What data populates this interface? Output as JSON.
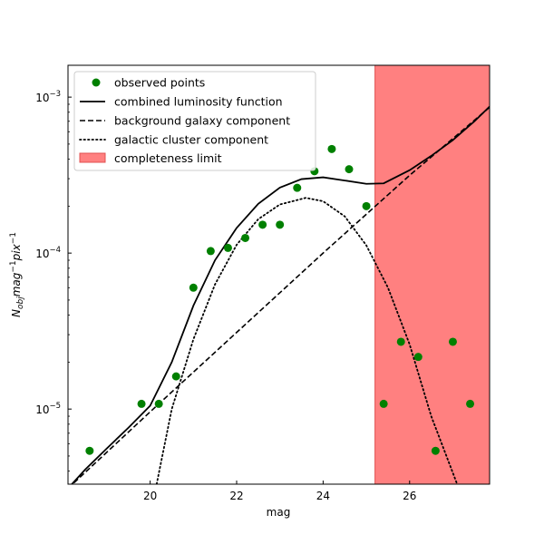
{
  "chart_data": {
    "type": "scatter",
    "xlabel": "mag",
    "ylabel": "N_obj mag^-1 pix^-1",
    "ylabel_parts": {
      "base": "N",
      "sub": "obj",
      "mid1": "mag",
      "sup1": "−1",
      "mid2": "pix",
      "sup2": "−1"
    },
    "xlim": [
      18.1,
      27.85
    ],
    "ylim": [
      3.3e-06,
      0.0016
    ],
    "y_scale": "log",
    "x_ticks": [
      20,
      22,
      24,
      26
    ],
    "x_tick_labels": [
      "20",
      "22",
      "24",
      "26"
    ],
    "y_ticks": [
      1e-05,
      0.0001,
      0.001
    ],
    "y_tick_labels": [
      {
        "base": "10",
        "exp": "−5"
      },
      {
        "base": "10",
        "exp": "−4"
      },
      {
        "base": "10",
        "exp": "−3"
      }
    ],
    "grid": false,
    "legend_position": "top-left",
    "legend": [
      {
        "label": "observed points",
        "style": "marker",
        "color": "#008000"
      },
      {
        "label": "combined luminosity function",
        "style": "solid",
        "color": "#000000"
      },
      {
        "label": "background galaxy component",
        "style": "dashed",
        "color": "#000000"
      },
      {
        "label": "galactic cluster component",
        "style": "dotted",
        "color": "#000000"
      },
      {
        "label": "completeness limit",
        "style": "patch",
        "color": "#ff8080"
      }
    ],
    "completeness_limit": {
      "x_from": 25.2,
      "x_to": 27.85,
      "color": "#ff8080"
    },
    "series": [
      {
        "name": "observed points",
        "kind": "scatter",
        "color": "#008000",
        "points": [
          {
            "x": 18.6,
            "y": 5.4e-06
          },
          {
            "x": 19.8,
            "y": 1.08e-05
          },
          {
            "x": 20.2,
            "y": 1.08e-05
          },
          {
            "x": 20.6,
            "y": 1.62e-05
          },
          {
            "x": 21.0,
            "y": 6e-05
          },
          {
            "x": 21.4,
            "y": 0.000103
          },
          {
            "x": 21.8,
            "y": 0.000108
          },
          {
            "x": 22.2,
            "y": 0.000125
          },
          {
            "x": 22.6,
            "y": 0.000152
          },
          {
            "x": 23.0,
            "y": 0.000152
          },
          {
            "x": 23.4,
            "y": 0.000262
          },
          {
            "x": 23.8,
            "y": 0.000335
          },
          {
            "x": 24.2,
            "y": 0.000465
          },
          {
            "x": 24.6,
            "y": 0.000345
          },
          {
            "x": 25.0,
            "y": 0.0002
          },
          {
            "x": 25.4,
            "y": 1.08e-05
          },
          {
            "x": 25.8,
            "y": 2.7e-05
          },
          {
            "x": 26.2,
            "y": 2.16e-05
          },
          {
            "x": 26.6,
            "y": 5.4e-06
          },
          {
            "x": 27.0,
            "y": 2.7e-05
          },
          {
            "x": 27.4,
            "y": 1.08e-05
          }
        ]
      },
      {
        "name": "background galaxy component",
        "kind": "line",
        "style": "dashed",
        "color": "#000000",
        "points": [
          {
            "x": 18.1,
            "y": 3.1e-06
          },
          {
            "x": 20.0,
            "y": 9.6e-06
          },
          {
            "x": 22.0,
            "y": 3.1e-05
          },
          {
            "x": 24.0,
            "y": 0.0001
          },
          {
            "x": 26.0,
            "y": 0.000315
          },
          {
            "x": 27.85,
            "y": 0.00086
          }
        ]
      },
      {
        "name": "galactic cluster component",
        "kind": "line",
        "style": "dotted",
        "color": "#000000",
        "points": [
          {
            "x": 20.15,
            "y": 3.3e-06
          },
          {
            "x": 20.5,
            "y": 1e-05
          },
          {
            "x": 21.0,
            "y": 2.8e-05
          },
          {
            "x": 21.5,
            "y": 6.3e-05
          },
          {
            "x": 22.0,
            "y": 0.000113
          },
          {
            "x": 22.5,
            "y": 0.000165
          },
          {
            "x": 23.0,
            "y": 0.000205
          },
          {
            "x": 23.6,
            "y": 0.000226
          },
          {
            "x": 24.0,
            "y": 0.000215
          },
          {
            "x": 24.5,
            "y": 0.000172
          },
          {
            "x": 25.0,
            "y": 0.000112
          },
          {
            "x": 25.5,
            "y": 6e-05
          },
          {
            "x": 26.0,
            "y": 2.6e-05
          },
          {
            "x": 26.5,
            "y": 9e-06
          },
          {
            "x": 27.1,
            "y": 3.3e-06
          }
        ]
      },
      {
        "name": "combined luminosity function",
        "kind": "line",
        "style": "solid",
        "color": "#000000",
        "points": [
          {
            "x": 18.1,
            "y": 3.1e-06
          },
          {
            "x": 18.5,
            "y": 4.1e-06
          },
          {
            "x": 19.0,
            "y": 5.6e-06
          },
          {
            "x": 19.5,
            "y": 7.6e-06
          },
          {
            "x": 20.0,
            "y": 1.05e-05
          },
          {
            "x": 20.5,
            "y": 2e-05
          },
          {
            "x": 21.0,
            "y": 4.6e-05
          },
          {
            "x": 21.5,
            "y": 9e-05
          },
          {
            "x": 22.0,
            "y": 0.000145
          },
          {
            "x": 22.5,
            "y": 0.000207
          },
          {
            "x": 23.0,
            "y": 0.000263
          },
          {
            "x": 23.5,
            "y": 0.000298
          },
          {
            "x": 24.0,
            "y": 0.000306
          },
          {
            "x": 24.5,
            "y": 0.000292
          },
          {
            "x": 25.0,
            "y": 0.000278
          },
          {
            "x": 25.4,
            "y": 0.00028
          },
          {
            "x": 26.0,
            "y": 0.00034
          },
          {
            "x": 26.5,
            "y": 0.00042
          },
          {
            "x": 27.0,
            "y": 0.00053
          },
          {
            "x": 27.5,
            "y": 0.0007
          },
          {
            "x": 27.85,
            "y": 0.00087
          }
        ]
      }
    ]
  }
}
